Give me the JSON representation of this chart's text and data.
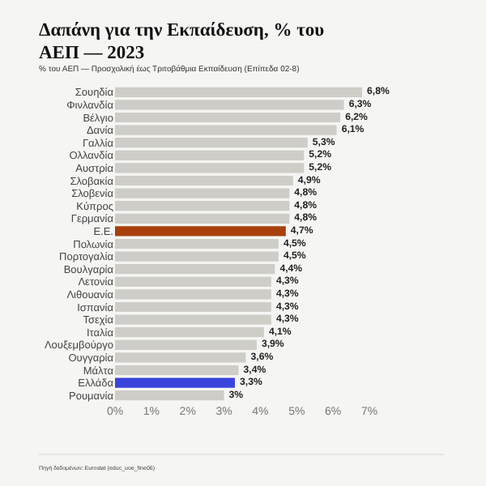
{
  "chart_data": {
    "type": "bar",
    "orientation": "horizontal",
    "title": "Δαπάνη για την Εκπαίδευση, % του ΑΕΠ — 2023",
    "subtitle": "% του ΑΕΠ — Προσχολική έως Τριτοβάθμια Εκπαίδευση (Επίπεδα 02-8)",
    "categories": [
      "Σουηδία",
      "Φινλανδία",
      "Βέλγιο",
      "Δανία",
      "Γαλλία",
      "Ολλανδία",
      "Αυστρία",
      "Σλοβακία",
      "Σλοβενία",
      "Κύπρος",
      "Γερμανία",
      "Ε.Ε.",
      "Πολωνία",
      "Πορτογαλία",
      "Βουλγαρία",
      "Λετονία",
      "Λιθουανία",
      "Ισπανία",
      "Τσεχία",
      "Ιταλία",
      "Λουξεμβούργο",
      "Ουγγαρία",
      "Μάλτα",
      "Ελλάδα",
      "Ρουμανία"
    ],
    "values": [
      6.8,
      6.3,
      6.2,
      6.1,
      5.3,
      5.2,
      5.2,
      4.9,
      4.8,
      4.8,
      4.8,
      4.7,
      4.5,
      4.5,
      4.4,
      4.3,
      4.3,
      4.3,
      4.3,
      4.1,
      3.9,
      3.6,
      3.4,
      3.3,
      3.0
    ],
    "value_labels": [
      "6,8%",
      "6,3%",
      "6,2%",
      "6,1%",
      "5,3%",
      "5,2%",
      "5,2%",
      "4,9%",
      "4,8%",
      "4,8%",
      "4,8%",
      "4,7%",
      "4,5%",
      "4,5%",
      "4,4%",
      "4,3%",
      "4,3%",
      "4,3%",
      "4,3%",
      "4,1%",
      "3,9%",
      "3,6%",
      "3,4%",
      "3,3%",
      "3%"
    ],
    "colors": [
      "#cfcdc8",
      "#cfcdc8",
      "#cfcdc8",
      "#cfcdc8",
      "#cfcdc8",
      "#cfcdc8",
      "#cfcdc8",
      "#cfcdc8",
      "#cfcdc8",
      "#cfcdc8",
      "#cfcdc8",
      "#a8400c",
      "#cfcdc8",
      "#cfcdc8",
      "#cfcdc8",
      "#cfcdc8",
      "#cfcdc8",
      "#cfcdc8",
      "#cfcdc8",
      "#cfcdc8",
      "#cfcdc8",
      "#cfcdc8",
      "#cfcdc8",
      "#3a44dc",
      "#cfcdc8"
    ],
    "xlim": [
      0,
      7
    ],
    "xticks": [
      {
        "value": 0,
        "label": "0%"
      },
      {
        "value": 1,
        "label": "1%"
      },
      {
        "value": 2,
        "label": "2%"
      },
      {
        "value": 3,
        "label": "3%"
      },
      {
        "value": 4,
        "label": "4%"
      },
      {
        "value": 5,
        "label": "5%"
      },
      {
        "value": 6,
        "label": "6%"
      },
      {
        "value": 7,
        "label": "7%"
      }
    ],
    "grid": false,
    "legend": false,
    "annotations": [
      "Πηγή δεδομένων: Eurostat (educ_uoe_fine06)"
    ]
  }
}
